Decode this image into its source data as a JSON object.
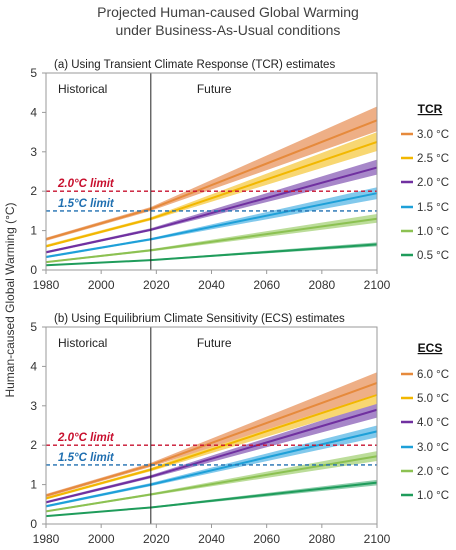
{
  "figure": {
    "title_line1": "Projected Human-caused Global Warming",
    "title_line2": "under Business-As-Usual conditions",
    "ylabel": "Human-caused Global Warming (°C)"
  },
  "colors": {
    "limit_2": "#c8102e",
    "limit_15": "#1f6fb0"
  },
  "chart_data": [
    {
      "type": "area",
      "title": "(a) Using Transient Climate Response (TCR) estimates",
      "region_labels": [
        "Historical",
        "Future"
      ],
      "divider_x": 2018,
      "legend_title": "TCR",
      "legend_placement": "right",
      "xlim": [
        1980,
        2100
      ],
      "ylim": [
        0,
        5
      ],
      "xticks": [
        "1980",
        "2000",
        "2020",
        "2040",
        "2060",
        "2080",
        "2100"
      ],
      "yticks": [
        "0",
        "1",
        "2",
        "3",
        "4",
        "5"
      ],
      "grid": false,
      "limits": [
        {
          "label": "2.0°C limit",
          "y": 2.0,
          "color": "#c8102e"
        },
        {
          "label": "1.5°C limit",
          "y": 1.5,
          "color": "#1f6fb0"
        }
      ],
      "series": [
        {
          "name": "3.0 °C",
          "color": "#e68a3c",
          "fill": "#eeaf86",
          "x": [
            1980,
            2018,
            2100
          ],
          "y": [
            0.78,
            1.55,
            3.8
          ],
          "lo": [
            0.74,
            1.5,
            3.52
          ],
          "hi": [
            0.82,
            1.6,
            4.15
          ]
        },
        {
          "name": "2.5 °C",
          "color": "#f2b700",
          "fill": "#f8d772",
          "x": [
            1980,
            2018,
            2100
          ],
          "y": [
            0.6,
            1.3,
            3.25
          ],
          "lo": [
            0.57,
            1.26,
            3.02
          ],
          "hi": [
            0.64,
            1.34,
            3.5
          ]
        },
        {
          "name": "2.0 °C",
          "color": "#7030a0",
          "fill": "#a787c9",
          "x": [
            1980,
            2018,
            2100
          ],
          "y": [
            0.45,
            1.02,
            2.6
          ],
          "lo": [
            0.42,
            0.99,
            2.42
          ],
          "hi": [
            0.48,
            1.06,
            2.8
          ]
        },
        {
          "name": "1.5 °C",
          "color": "#1ea0d8",
          "fill": "#82c9ec",
          "x": [
            1980,
            2018,
            2100
          ],
          "y": [
            0.33,
            0.78,
            1.95
          ],
          "lo": [
            0.3,
            0.75,
            1.8
          ],
          "hi": [
            0.36,
            0.81,
            2.1
          ]
        },
        {
          "name": "1.0 °C",
          "color": "#8cc152",
          "fill": "#bcdd9a",
          "x": [
            1980,
            2018,
            2100
          ],
          "y": [
            0.2,
            0.5,
            1.3
          ],
          "lo": [
            0.18,
            0.47,
            1.2
          ],
          "hi": [
            0.22,
            0.53,
            1.42
          ]
        },
        {
          "name": "0.5 °C",
          "color": "#1f9c5b",
          "fill": "#8ccdab",
          "x": [
            1980,
            2018,
            2100
          ],
          "y": [
            0.12,
            0.25,
            0.65
          ],
          "lo": [
            0.11,
            0.24,
            0.6
          ],
          "hi": [
            0.13,
            0.27,
            0.7
          ]
        }
      ]
    },
    {
      "type": "area",
      "title": "(b) Using Equilibrium Climate Sensitivity (ECS) estimates",
      "region_labels": [
        "Historical",
        "Future"
      ],
      "divider_x": 2018,
      "legend_title": "ECS",
      "legend_placement": "right",
      "xlim": [
        1980,
        2100
      ],
      "ylim": [
        0,
        5
      ],
      "xticks": [
        "1980",
        "2000",
        "2020",
        "2040",
        "2060",
        "2080",
        "2100"
      ],
      "yticks": [
        "0",
        "1",
        "2",
        "3",
        "4",
        "5"
      ],
      "grid": false,
      "limits": [
        {
          "label": "2.0°C limit",
          "y": 2.0,
          "color": "#c8102e"
        },
        {
          "label": "1.5°C limit",
          "y": 1.5,
          "color": "#1f6fb0"
        }
      ],
      "series": [
        {
          "name": "6.0 °C",
          "color": "#e68a3c",
          "fill": "#eeaf86",
          "x": [
            1980,
            2018,
            2100
          ],
          "y": [
            0.72,
            1.5,
            3.58
          ],
          "lo": [
            0.68,
            1.45,
            3.3
          ],
          "hi": [
            0.76,
            1.55,
            3.85
          ]
        },
        {
          "name": "5.0 °C",
          "color": "#f2b700",
          "fill": "#f8d772",
          "x": [
            1980,
            2018,
            2100
          ],
          "y": [
            0.65,
            1.38,
            3.28
          ],
          "lo": [
            0.62,
            1.34,
            3.05
          ],
          "hi": [
            0.68,
            1.42,
            3.5
          ]
        },
        {
          "name": "4.0 °C",
          "color": "#7030a0",
          "fill": "#a787c9",
          "x": [
            1980,
            2018,
            2100
          ],
          "y": [
            0.55,
            1.2,
            2.9
          ],
          "lo": [
            0.52,
            1.16,
            2.7
          ],
          "hi": [
            0.58,
            1.24,
            3.08
          ]
        },
        {
          "name": "3.0 °C",
          "color": "#1ea0d8",
          "fill": "#82c9ec",
          "x": [
            1980,
            2018,
            2100
          ],
          "y": [
            0.45,
            1.0,
            2.35
          ],
          "lo": [
            0.42,
            0.96,
            2.2
          ],
          "hi": [
            0.48,
            1.04,
            2.5
          ]
        },
        {
          "name": "2.0 °C",
          "color": "#8cc152",
          "fill": "#bcdd9a",
          "x": [
            1980,
            2018,
            2100
          ],
          "y": [
            0.32,
            0.75,
            1.72
          ],
          "lo": [
            0.3,
            0.72,
            1.6
          ],
          "hi": [
            0.34,
            0.78,
            1.85
          ]
        },
        {
          "name": "1.0 °C",
          "color": "#1f9c5b",
          "fill": "#8ccdab",
          "x": [
            1980,
            2018,
            2100
          ],
          "y": [
            0.2,
            0.42,
            1.05
          ],
          "lo": [
            0.19,
            0.4,
            0.98
          ],
          "hi": [
            0.21,
            0.44,
            1.12
          ]
        }
      ]
    }
  ]
}
